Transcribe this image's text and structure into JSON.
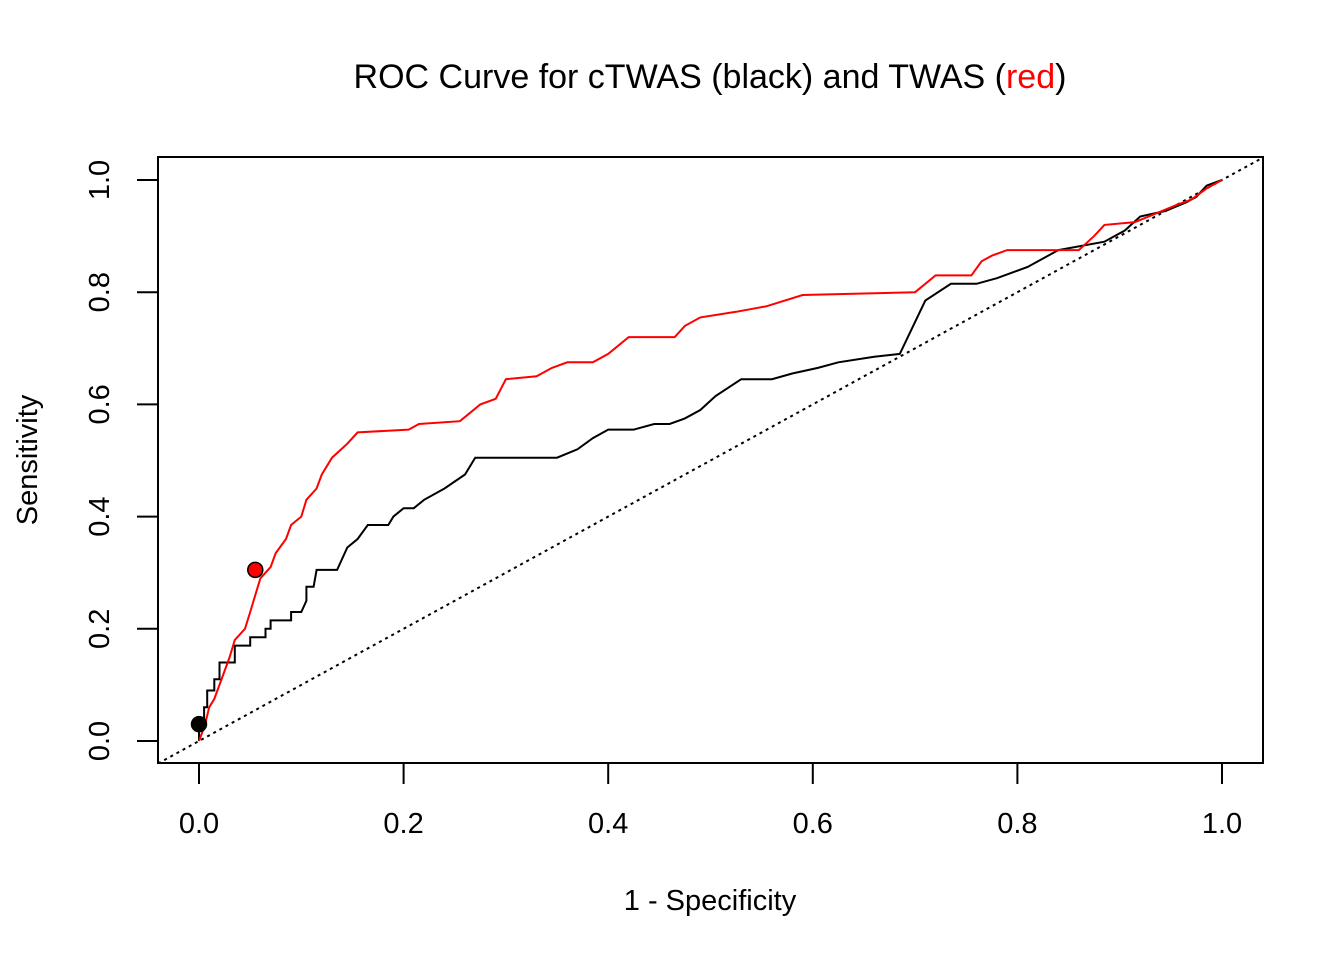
{
  "chart_data": {
    "type": "line",
    "title": {
      "prefix": "ROC Curve for cTWAS (black) and TWAS (",
      "highlight": "red",
      "suffix": ")",
      "highlight_color": "#ff0000"
    },
    "xlabel": "1 - Specificity",
    "ylabel": "Sensitivity",
    "xlim": [
      0,
      1
    ],
    "ylim": [
      0,
      1
    ],
    "x_ticks": [
      "0.0",
      "0.2",
      "0.4",
      "0.6",
      "0.8",
      "1.0"
    ],
    "y_ticks": [
      "0.0",
      "0.2",
      "0.4",
      "0.6",
      "0.8",
      "1.0"
    ],
    "grid": false,
    "reference_line": {
      "from": [
        0,
        0
      ],
      "to": [
        1,
        1
      ],
      "style": "dotted",
      "color": "#000000"
    },
    "series": [
      {
        "color": "#000000",
        "points": [
          [
            0,
            0
          ],
          [
            0,
            0.03
          ],
          [
            0.005,
            0.03
          ],
          [
            0.005,
            0.06
          ],
          [
            0.008,
            0.06
          ],
          [
            0.008,
            0.09
          ],
          [
            0.015,
            0.09
          ],
          [
            0.015,
            0.11
          ],
          [
            0.02,
            0.11
          ],
          [
            0.02,
            0.14
          ],
          [
            0.035,
            0.14
          ],
          [
            0.035,
            0.17
          ],
          [
            0.05,
            0.17
          ],
          [
            0.05,
            0.185
          ],
          [
            0.065,
            0.185
          ],
          [
            0.065,
            0.2
          ],
          [
            0.07,
            0.2
          ],
          [
            0.07,
            0.215
          ],
          [
            0.09,
            0.215
          ],
          [
            0.09,
            0.23
          ],
          [
            0.1,
            0.23
          ],
          [
            0.105,
            0.25
          ],
          [
            0.105,
            0.275
          ],
          [
            0.112,
            0.275
          ],
          [
            0.115,
            0.305
          ],
          [
            0.135,
            0.305
          ],
          [
            0.145,
            0.345
          ],
          [
            0.155,
            0.36
          ],
          [
            0.165,
            0.385
          ],
          [
            0.185,
            0.385
          ],
          [
            0.19,
            0.4
          ],
          [
            0.2,
            0.415
          ],
          [
            0.21,
            0.415
          ],
          [
            0.22,
            0.43
          ],
          [
            0.24,
            0.45
          ],
          [
            0.26,
            0.475
          ],
          [
            0.27,
            0.505
          ],
          [
            0.35,
            0.505
          ],
          [
            0.37,
            0.52
          ],
          [
            0.385,
            0.54
          ],
          [
            0.4,
            0.555
          ],
          [
            0.425,
            0.555
          ],
          [
            0.445,
            0.565
          ],
          [
            0.46,
            0.565
          ],
          [
            0.475,
            0.575
          ],
          [
            0.49,
            0.59
          ],
          [
            0.505,
            0.615
          ],
          [
            0.53,
            0.645
          ],
          [
            0.56,
            0.645
          ],
          [
            0.58,
            0.655
          ],
          [
            0.605,
            0.665
          ],
          [
            0.625,
            0.675
          ],
          [
            0.66,
            0.685
          ],
          [
            0.685,
            0.69
          ],
          [
            0.71,
            0.785
          ],
          [
            0.735,
            0.815
          ],
          [
            0.76,
            0.815
          ],
          [
            0.78,
            0.825
          ],
          [
            0.81,
            0.845
          ],
          [
            0.84,
            0.875
          ],
          [
            0.885,
            0.89
          ],
          [
            0.905,
            0.91
          ],
          [
            0.92,
            0.935
          ],
          [
            0.945,
            0.945
          ],
          [
            0.965,
            0.96
          ],
          [
            0.975,
            0.97
          ],
          [
            0.98,
            0.98
          ],
          [
            0.985,
            0.99
          ],
          [
            1,
            1
          ]
        ]
      },
      {
        "color": "#ff0000",
        "points": [
          [
            0,
            0
          ],
          [
            0.003,
            0.015
          ],
          [
            0.006,
            0.03
          ],
          [
            0.01,
            0.06
          ],
          [
            0.015,
            0.075
          ],
          [
            0.02,
            0.1
          ],
          [
            0.025,
            0.125
          ],
          [
            0.03,
            0.15
          ],
          [
            0.035,
            0.18
          ],
          [
            0.045,
            0.2
          ],
          [
            0.05,
            0.23
          ],
          [
            0.055,
            0.26
          ],
          [
            0.06,
            0.29
          ],
          [
            0.07,
            0.31
          ],
          [
            0.075,
            0.335
          ],
          [
            0.085,
            0.36
          ],
          [
            0.09,
            0.385
          ],
          [
            0.1,
            0.4
          ],
          [
            0.105,
            0.43
          ],
          [
            0.115,
            0.45
          ],
          [
            0.12,
            0.475
          ],
          [
            0.13,
            0.505
          ],
          [
            0.145,
            0.53
          ],
          [
            0.155,
            0.55
          ],
          [
            0.205,
            0.555
          ],
          [
            0.215,
            0.565
          ],
          [
            0.255,
            0.57
          ],
          [
            0.265,
            0.585
          ],
          [
            0.275,
            0.6
          ],
          [
            0.29,
            0.61
          ],
          [
            0.3,
            0.645
          ],
          [
            0.33,
            0.65
          ],
          [
            0.345,
            0.665
          ],
          [
            0.36,
            0.675
          ],
          [
            0.385,
            0.675
          ],
          [
            0.4,
            0.69
          ],
          [
            0.42,
            0.72
          ],
          [
            0.465,
            0.72
          ],
          [
            0.475,
            0.74
          ],
          [
            0.49,
            0.755
          ],
          [
            0.525,
            0.765
          ],
          [
            0.555,
            0.775
          ],
          [
            0.59,
            0.795
          ],
          [
            0.7,
            0.8
          ],
          [
            0.72,
            0.83
          ],
          [
            0.755,
            0.83
          ],
          [
            0.765,
            0.855
          ],
          [
            0.775,
            0.865
          ],
          [
            0.79,
            0.875
          ],
          [
            0.86,
            0.875
          ],
          [
            0.875,
            0.9
          ],
          [
            0.885,
            0.92
          ],
          [
            0.915,
            0.925
          ],
          [
            0.935,
            0.94
          ],
          [
            0.955,
            0.955
          ],
          [
            0.97,
            0.965
          ],
          [
            0.985,
            0.985
          ],
          [
            1,
            1
          ]
        ]
      }
    ],
    "points": [
      {
        "x": 0.0,
        "y": 0.03,
        "fill": "#000000"
      },
      {
        "x": 0.055,
        "y": 0.305,
        "fill": "#ff0000"
      }
    ]
  }
}
